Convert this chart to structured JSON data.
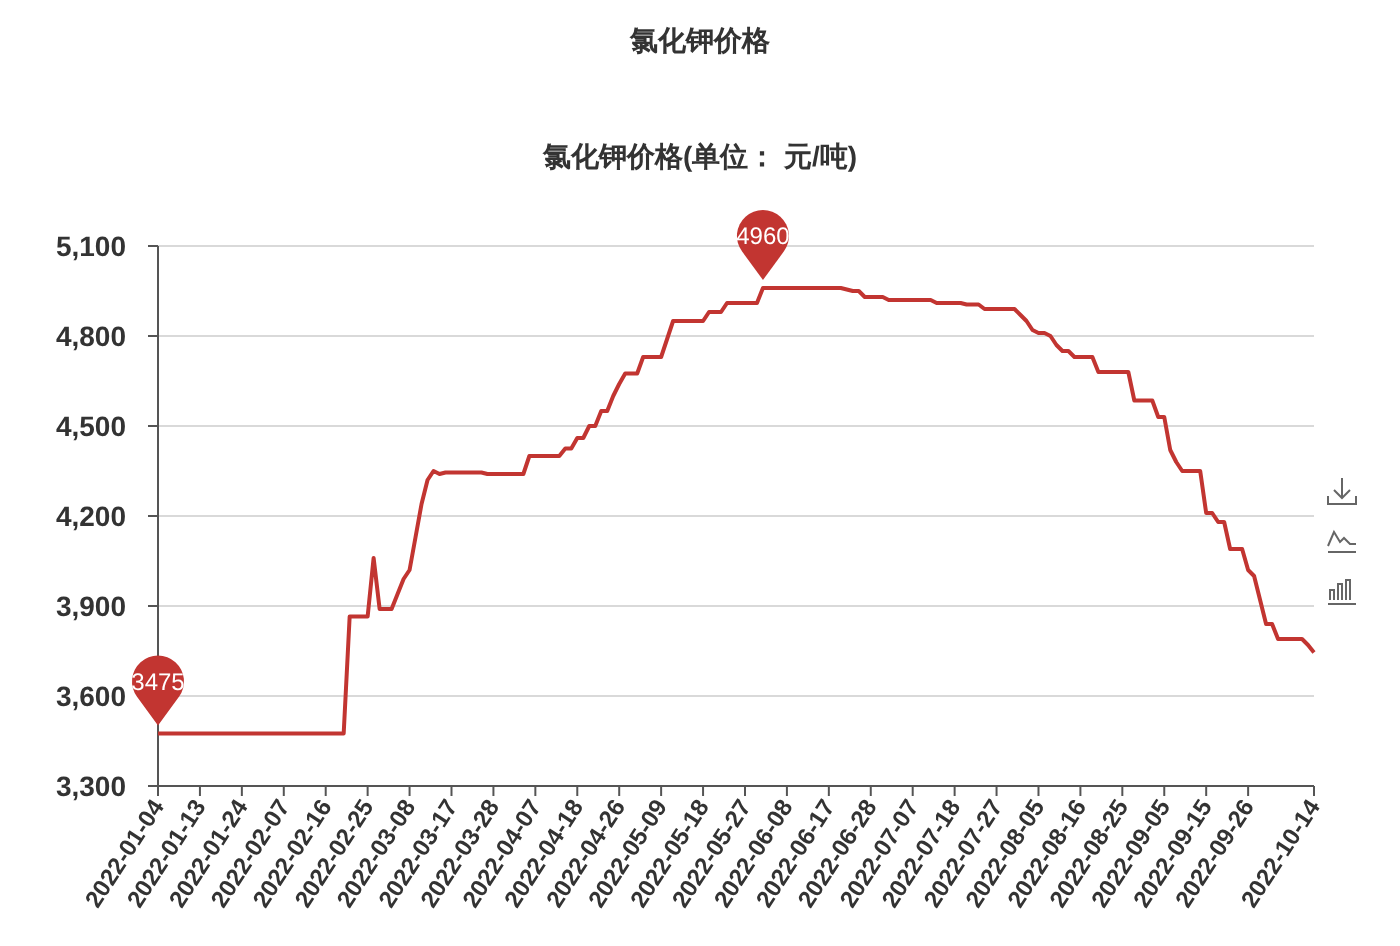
{
  "chart_data": {
    "type": "line",
    "title": "氯化钾价格",
    "subtitle": "氯化钾价格(单位： 元/吨)",
    "categories": [
      "2022-01-04",
      null,
      null,
      null,
      null,
      null,
      null,
      "2022-01-13",
      null,
      null,
      null,
      null,
      null,
      null,
      "2022-01-24",
      null,
      null,
      null,
      null,
      null,
      null,
      "2022-02-07",
      null,
      null,
      null,
      null,
      null,
      null,
      "2022-02-16",
      null,
      null,
      null,
      null,
      null,
      null,
      "2022-02-25",
      null,
      null,
      null,
      null,
      null,
      null,
      "2022-03-08",
      null,
      null,
      null,
      null,
      null,
      null,
      "2022-03-17",
      null,
      null,
      null,
      null,
      null,
      null,
      "2022-03-28",
      null,
      null,
      null,
      null,
      null,
      null,
      "2022-04-07",
      null,
      null,
      null,
      null,
      null,
      null,
      "2022-04-18",
      null,
      null,
      null,
      null,
      null,
      null,
      "2022-04-26",
      null,
      null,
      null,
      null,
      null,
      null,
      "2022-05-09",
      null,
      null,
      null,
      null,
      null,
      null,
      "2022-05-18",
      null,
      null,
      null,
      null,
      null,
      null,
      "2022-05-27",
      null,
      null,
      null,
      null,
      null,
      null,
      "2022-06-08",
      null,
      null,
      null,
      null,
      null,
      null,
      "2022-06-17",
      null,
      null,
      null,
      null,
      null,
      null,
      "2022-06-28",
      null,
      null,
      null,
      null,
      null,
      null,
      "2022-07-07",
      null,
      null,
      null,
      null,
      null,
      null,
      "2022-07-18",
      null,
      null,
      null,
      null,
      null,
      null,
      "2022-07-27",
      null,
      null,
      null,
      null,
      null,
      null,
      "2022-08-05",
      null,
      null,
      null,
      null,
      null,
      null,
      "2022-08-16",
      null,
      null,
      null,
      null,
      null,
      null,
      "2022-08-25",
      null,
      null,
      null,
      null,
      null,
      null,
      "2022-09-05",
      null,
      null,
      null,
      null,
      null,
      null,
      "2022-09-15",
      null,
      null,
      null,
      null,
      null,
      null,
      "2022-09-26",
      null,
      null,
      null,
      null,
      null,
      null,
      null,
      null,
      null,
      null,
      "2022-10-14"
    ],
    "values": [
      3475,
      3475,
      3475,
      3475,
      3475,
      3475,
      3475,
      3475,
      3475,
      3475,
      3475,
      3475,
      3475,
      3475,
      3475,
      3475,
      3475,
      3475,
      3475,
      3475,
      3475,
      3475,
      3475,
      3475,
      3475,
      3475,
      3475,
      3475,
      3475,
      3475,
      3475,
      3475,
      3865,
      3865,
      3865,
      3865,
      4060,
      3890,
      3890,
      3890,
      3940,
      3990,
      4020,
      4130,
      4240,
      4320,
      4350,
      4340,
      4345,
      4345,
      4345,
      4345,
      4345,
      4345,
      4345,
      4340,
      4340,
      4340,
      4340,
      4340,
      4340,
      4340,
      4400,
      4400,
      4400,
      4400,
      4400,
      4400,
      4425,
      4425,
      4460,
      4460,
      4500,
      4500,
      4550,
      4550,
      4600,
      4640,
      4675,
      4675,
      4675,
      4730,
      4730,
      4730,
      4730,
      4790,
      4850,
      4850,
      4850,
      4850,
      4850,
      4850,
      4880,
      4880,
      4880,
      4910,
      4910,
      4910,
      4910,
      4910,
      4910,
      4960,
      4960,
      4960,
      4960,
      4960,
      4960,
      4960,
      4960,
      4960,
      4960,
      4960,
      4960,
      4960,
      4960,
      4955,
      4950,
      4950,
      4930,
      4930,
      4930,
      4930,
      4920,
      4920,
      4920,
      4920,
      4920,
      4920,
      4920,
      4920,
      4910,
      4910,
      4910,
      4910,
      4910,
      4905,
      4905,
      4905,
      4890,
      4890,
      4890,
      4890,
      4890,
      4890,
      4870,
      4850,
      4820,
      4810,
      4810,
      4800,
      4770,
      4750,
      4750,
      4730,
      4730,
      4730,
      4730,
      4680,
      4680,
      4680,
      4680,
      4680,
      4680,
      4585,
      4585,
      4585,
      4585,
      4530,
      4530,
      4420,
      4380,
      4350,
      4350,
      4350,
      4350,
      4210,
      4210,
      4180,
      4180,
      4090,
      4090,
      4090,
      4020,
      4000,
      3920,
      3840,
      3840,
      3790,
      3790,
      3790,
      3790,
      3790,
      3770,
      3745
    ],
    "value_labels": [
      "3475",
      null,
      null,
      null,
      null,
      null,
      null,
      null,
      null,
      null,
      null,
      null,
      null,
      null,
      null,
      null,
      null,
      null,
      null,
      null,
      null,
      null,
      null,
      null,
      null,
      null,
      null,
      null,
      null,
      null,
      null,
      null,
      null,
      null,
      null,
      null,
      null,
      null,
      null,
      null,
      null,
      null,
      null,
      null,
      null,
      null,
      null,
      null,
      null,
      null,
      null,
      null,
      null,
      null,
      null,
      null,
      null,
      null,
      null,
      null,
      null,
      null,
      null,
      null,
      null,
      null,
      null,
      null,
      null,
      null,
      null,
      null,
      null,
      null,
      null,
      null,
      null,
      null,
      null,
      null,
      null,
      null,
      null,
      null,
      null,
      null,
      null,
      null,
      null,
      null,
      null,
      null,
      null,
      null,
      null,
      null,
      null,
      null,
      null,
      null,
      null,
      "4960",
      null,
      null,
      null,
      null,
      null,
      null,
      null,
      null,
      null,
      null,
      null,
      null,
      null,
      null,
      null,
      null,
      null,
      null,
      null,
      null,
      null,
      null,
      null,
      null,
      null,
      null,
      null,
      null,
      null,
      null,
      null,
      null,
      null,
      null,
      null,
      null,
      null,
      null,
      null,
      null,
      null,
      null,
      null,
      null,
      null,
      null,
      null,
      null,
      null,
      null,
      null,
      null,
      null,
      null,
      null,
      null,
      null,
      null,
      null,
      null,
      null,
      null,
      null,
      null,
      null,
      null,
      null,
      null,
      null,
      null,
      null,
      null,
      null,
      null,
      null,
      null,
      null,
      null,
      null,
      null,
      null,
      null,
      null,
      null,
      null,
      null,
      null,
      null,
      null,
      null,
      null,
      null
    ],
    "color": "#c23531",
    "ylim": [
      3300,
      5100
    ],
    "yticks": [
      {
        "value": 3300,
        "label": "3,300"
      },
      {
        "value": 3600,
        "label": "3,600"
      },
      {
        "value": 3900,
        "label": "3,900"
      },
      {
        "value": 4200,
        "label": "4,200"
      },
      {
        "value": 4500,
        "label": "4,500"
      },
      {
        "value": 4800,
        "label": "4,800"
      },
      {
        "value": 5100,
        "label": "5,100"
      }
    ],
    "grid": "y"
  }
}
